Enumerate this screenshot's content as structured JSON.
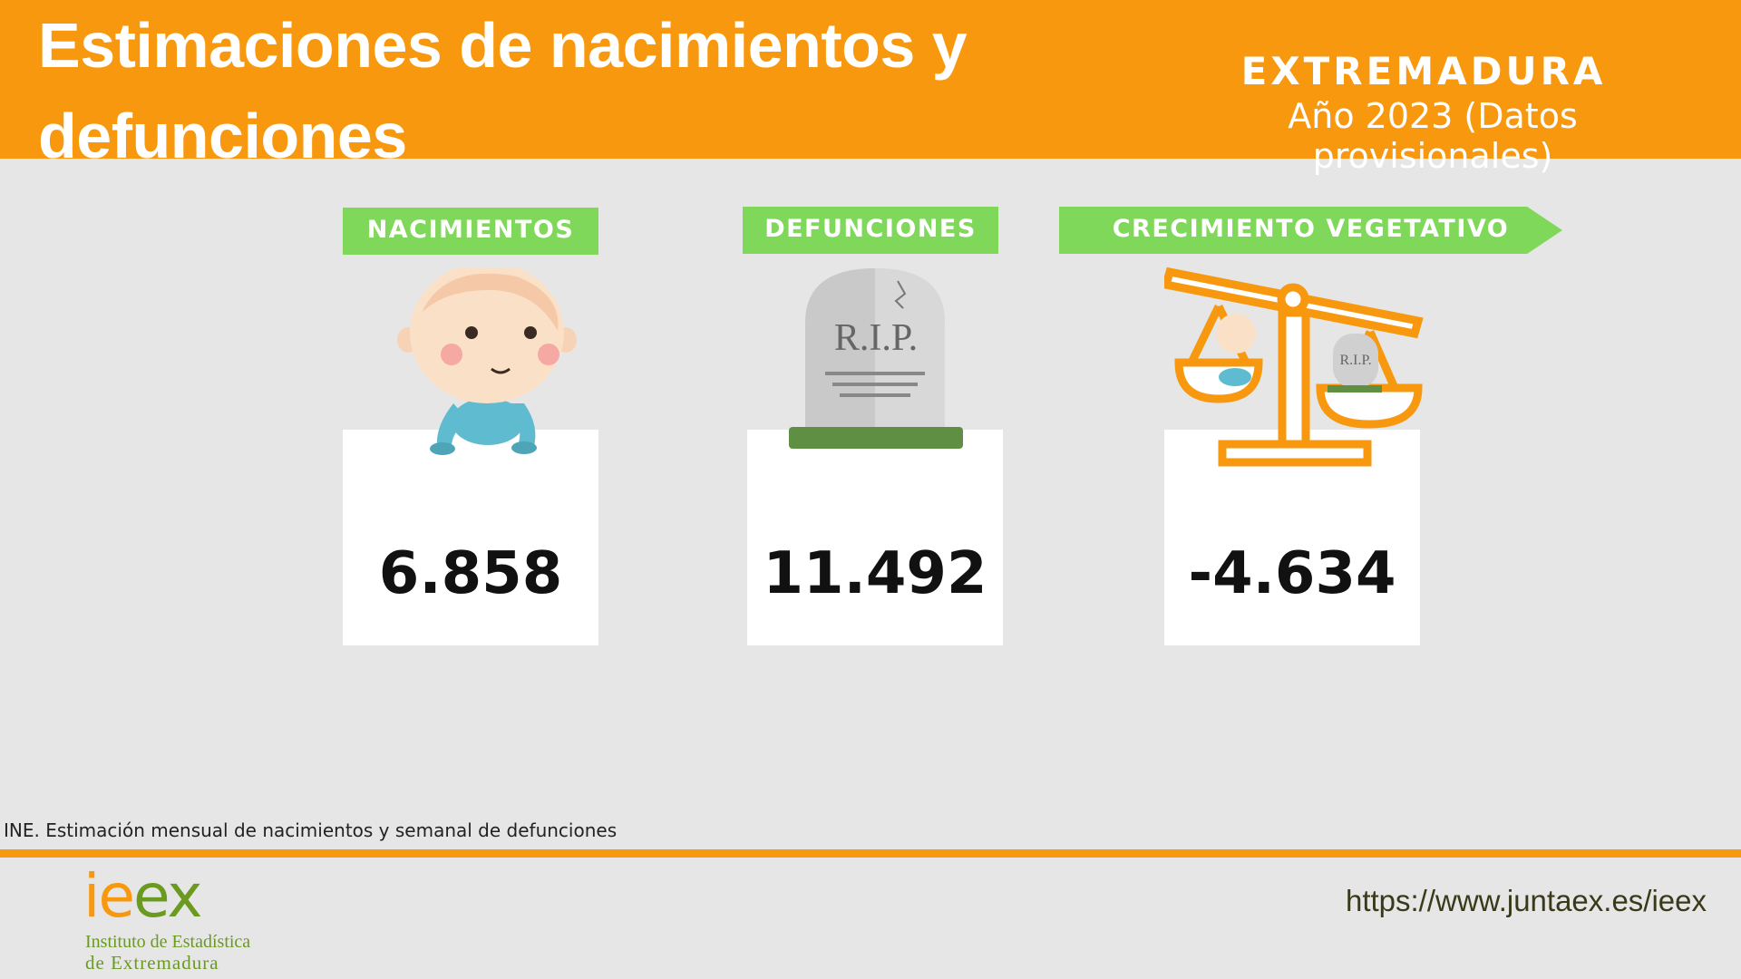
{
  "header": {
    "title": "Estimaciones de nacimientos y defunciones",
    "region": "EXTREMADURA",
    "subtitle": "Año 2023 (Datos provisionales)"
  },
  "cards": [
    {
      "label": "NACIMIENTOS",
      "value": "6.858",
      "icon": "crawling-baby-icon"
    },
    {
      "label": "DEFUNCIONES",
      "value": "11.492",
      "icon": "tombstone-icon",
      "icon_text": "R.I.P."
    },
    {
      "label": "CRECIMIENTO VEGETATIVO",
      "value": "-4.634",
      "icon": "balance-scale-icon",
      "icon_text": "R.I.P."
    }
  ],
  "footer": {
    "source": "INE. Estimación mensual de nacimientos y semanal de defunciones",
    "logo": {
      "mark": "ieex",
      "line1": "Instituto de Estadística",
      "line2": "de Extremadura"
    },
    "url": "https://www.juntaex.es/ieex"
  },
  "colors": {
    "orange": "#f7980f",
    "green_label": "#80d85a",
    "background": "#e6e6e6",
    "card": "#ffffff"
  }
}
